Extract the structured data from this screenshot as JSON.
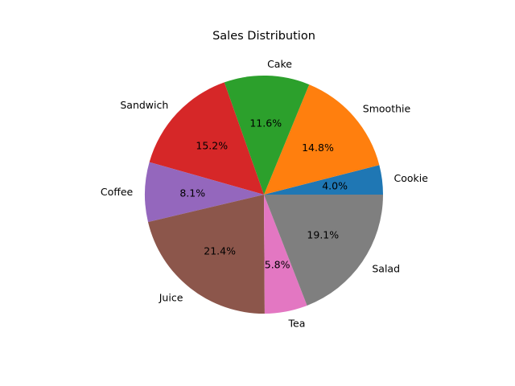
{
  "chart_data": {
    "type": "pie",
    "title": "Sales Distribution",
    "categories": [
      "Cookie",
      "Smoothie",
      "Cake",
      "Sandwich",
      "Coffee",
      "Juice",
      "Tea",
      "Salad"
    ],
    "values": [
      4.0,
      14.8,
      11.6,
      15.2,
      8.1,
      21.4,
      5.8,
      19.1
    ],
    "percent_labels": [
      "4.0%",
      "14.8%",
      "11.6%",
      "15.2%",
      "8.1%",
      "21.4%",
      "5.8%",
      "19.1%"
    ],
    "colors": [
      "#1f77b4",
      "#ff7f0e",
      "#2ca02c",
      "#d62728",
      "#9467bd",
      "#8c564b",
      "#e377c2",
      "#7f7f7f"
    ],
    "start_angle_deg": 0,
    "direction": "counterclockwise",
    "legend": "none",
    "grid": false
  }
}
